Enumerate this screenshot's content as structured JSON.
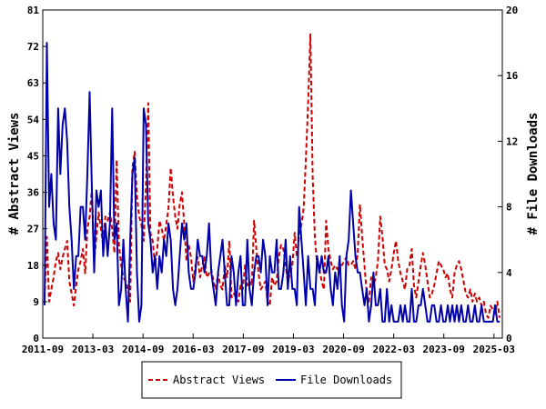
{
  "chart_data": {
    "type": "line",
    "title": "",
    "ylabel_left": "# Abstract Views",
    "ylabel_right": "# File Downloads",
    "xlabel": "",
    "x_tick_labels": [
      "2011-09",
      "2013-03",
      "2014-09",
      "2016-03",
      "2017-09",
      "2019-03",
      "2020-09",
      "2022-03",
      "2023-09",
      "2025-03"
    ],
    "x_range": [
      "2011-09",
      "2025-06"
    ],
    "y_left_range": [
      0,
      81
    ],
    "y_left_ticks": [
      0,
      9,
      18,
      27,
      36,
      45,
      54,
      63,
      72,
      81
    ],
    "y_right_range": [
      0,
      20
    ],
    "y_right_ticks": [
      0,
      4,
      8,
      12,
      16,
      20
    ],
    "grid": false,
    "legend_position": "bottom",
    "series": [
      {
        "name": "Abstract Views",
        "axis": "left",
        "color": "#cc0000",
        "dash": "dashed",
        "values": [
          10,
          25,
          9,
          12,
          15,
          19,
          21,
          17,
          20,
          22,
          24,
          14,
          11,
          8,
          13,
          17,
          19,
          22,
          16,
          27,
          30,
          37,
          19,
          25,
          31,
          27,
          23,
          30,
          29,
          31,
          27,
          21,
          44,
          23,
          18,
          15,
          14,
          12,
          9,
          42,
          46,
          35,
          30,
          28,
          24,
          38,
          58,
          26,
          24,
          18,
          22,
          29,
          27,
          24,
          28,
          32,
          42,
          35,
          30,
          27,
          33,
          36,
          28,
          19,
          23,
          20,
          14,
          18,
          20,
          15,
          18,
          20,
          15,
          16,
          17,
          14,
          12,
          16,
          13,
          12,
          18,
          15,
          24,
          10,
          11,
          10,
          9,
          13,
          12,
          18,
          13,
          14,
          13,
          29,
          22,
          16,
          12,
          13,
          14,
          9,
          8,
          15,
          13,
          14,
          20,
          23,
          22,
          18,
          14,
          16,
          18,
          26,
          20,
          25,
          28,
          32,
          44,
          58,
          75,
          40,
          25,
          18,
          17,
          14,
          12,
          29,
          22,
          19,
          17,
          18,
          17,
          19,
          18,
          19,
          20,
          18,
          18,
          19,
          17,
          21,
          33,
          25,
          18,
          11,
          9,
          15,
          13,
          15,
          19,
          30,
          25,
          18,
          17,
          14,
          17,
          21,
          24,
          19,
          16,
          14,
          12,
          17,
          18,
          22,
          13,
          10,
          14,
          18,
          21,
          18,
          14,
          10,
          11,
          13,
          16,
          19,
          18,
          17,
          15,
          16,
          12,
          10,
          16,
          18,
          19,
          17,
          14,
          11,
          10,
          12,
          9,
          11,
          9,
          10,
          8,
          9,
          6,
          5,
          8,
          7,
          6,
          9,
          5
        ]
      },
      {
        "name": "File Downloads",
        "axis": "right",
        "color": "#0000aa",
        "dash": "solid",
        "values": [
          2,
          18,
          8,
          10,
          7,
          6,
          14,
          10,
          13,
          14,
          12,
          8,
          6,
          3,
          5,
          5,
          8,
          8,
          6,
          10,
          15,
          9,
          4,
          9,
          8,
          9,
          5,
          7,
          5,
          7,
          14,
          6,
          7,
          2,
          3,
          6,
          3,
          1,
          6,
          10,
          11,
          4,
          1,
          2,
          14,
          13,
          7,
          6,
          4,
          5,
          3,
          5,
          4,
          6,
          5,
          7,
          6,
          3,
          2,
          3,
          5,
          7,
          6,
          7,
          4,
          3,
          3,
          4,
          6,
          5,
          5,
          4,
          5,
          7,
          4,
          3,
          2,
          4,
          5,
          6,
          4,
          2,
          2,
          5,
          4,
          2,
          4,
          5,
          2,
          2,
          6,
          3,
          2,
          4,
          5,
          5,
          4,
          6,
          5,
          2,
          5,
          4,
          4,
          6,
          3,
          3,
          4,
          6,
          3,
          5,
          3,
          3,
          2,
          8,
          6,
          4,
          2,
          5,
          3,
          3,
          2,
          5,
          4,
          5,
          4,
          4,
          5,
          3,
          2,
          4,
          3,
          5,
          2,
          1,
          5,
          6,
          9,
          7,
          5,
          4,
          4,
          3,
          2,
          3,
          1,
          2,
          4,
          2,
          2,
          3,
          1,
          1,
          3,
          1,
          2,
          1,
          1,
          1,
          2,
          1,
          2,
          1,
          1,
          3,
          1,
          1,
          2,
          2,
          3,
          2,
          1,
          1,
          2,
          2,
          1,
          1,
          2,
          1,
          1,
          2,
          1,
          2,
          1,
          2,
          1,
          2,
          1,
          1,
          2,
          1,
          1,
          2,
          1,
          1,
          2,
          1,
          1,
          1,
          1,
          1,
          2,
          1,
          1
        ]
      }
    ]
  }
}
